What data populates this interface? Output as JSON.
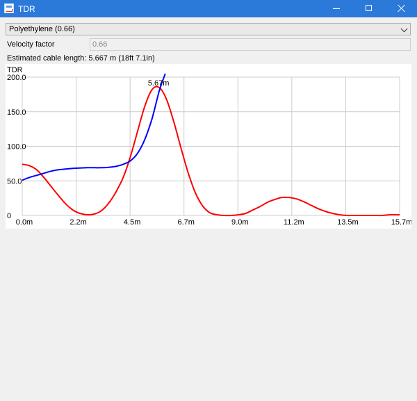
{
  "window": {
    "title": "TDR",
    "icon": "tdr-app-icon",
    "controls": [
      "minimize-icon",
      "maximize-icon",
      "close-icon"
    ]
  },
  "cable_select": {
    "value": "Polyethylene (0.66)"
  },
  "velocity_factor": {
    "label": "Velocity factor",
    "value": "0.66"
  },
  "estimate": {
    "text": "Estimated cable length: 5.667 m (18ft 7.1in)"
  },
  "chart_data": {
    "type": "line",
    "title": "TDR",
    "xlabel": "",
    "ylabel": "",
    "x_unit": "m",
    "xlim": [
      0,
      15.7
    ],
    "ylim": [
      0,
      200
    ],
    "grid": true,
    "x_ticks": [
      "0.0m",
      "2.2m",
      "4.5m",
      "6.7m",
      "9.0m",
      "11.2m",
      "13.5m",
      "15.7m"
    ],
    "y_ticks": [
      "0",
      "50.0",
      "100.0",
      "150.0",
      "200.0"
    ],
    "marker": {
      "x": 5.67,
      "label": "5.67m"
    },
    "series": [
      {
        "color": "#ff0000",
        "x": [
          0,
          0.3,
          0.6,
          0.9,
          1.2,
          1.5,
          1.8,
          2.1,
          2.4,
          2.7,
          3.0,
          3.3,
          3.6,
          3.9,
          4.2,
          4.5,
          4.8,
          5.1,
          5.4,
          5.7,
          6.0,
          6.3,
          6.6,
          6.9,
          7.2,
          7.5,
          7.8,
          8.1,
          8.4,
          8.7,
          9.0,
          9.3,
          9.6,
          9.9,
          10.2,
          10.5,
          10.8,
          11.1,
          11.4,
          11.7,
          12.0,
          12.3,
          12.6,
          12.9,
          13.2,
          13.5,
          13.8,
          14.1,
          14.4,
          14.7,
          15.0,
          15.3,
          15.7
        ],
        "values": [
          74,
          72,
          66,
          55,
          42,
          29,
          17,
          8,
          3,
          1,
          2,
          7,
          18,
          34,
          55,
          85,
          122,
          158,
          182,
          185,
          168,
          136,
          98,
          62,
          33,
          14,
          4,
          1,
          0,
          0,
          1,
          3,
          8,
          13,
          19,
          23,
          26,
          26,
          24,
          20,
          15,
          10,
          6,
          3,
          1,
          0,
          0,
          0,
          0,
          0,
          0,
          1,
          1
        ]
      },
      {
        "color": "#0000ff",
        "x": [
          0,
          0.3,
          0.6,
          0.9,
          1.2,
          1.5,
          1.8,
          2.1,
          2.4,
          2.7,
          3.0,
          3.3,
          3.6,
          3.9,
          4.2,
          4.5,
          4.8,
          5.1,
          5.4,
          5.7,
          5.95
        ],
        "values": [
          51,
          55,
          58,
          61,
          64,
          66,
          67,
          68,
          68.5,
          69,
          69,
          69,
          69.5,
          71,
          74,
          79,
          90,
          110,
          140,
          180,
          205
        ]
      }
    ]
  }
}
